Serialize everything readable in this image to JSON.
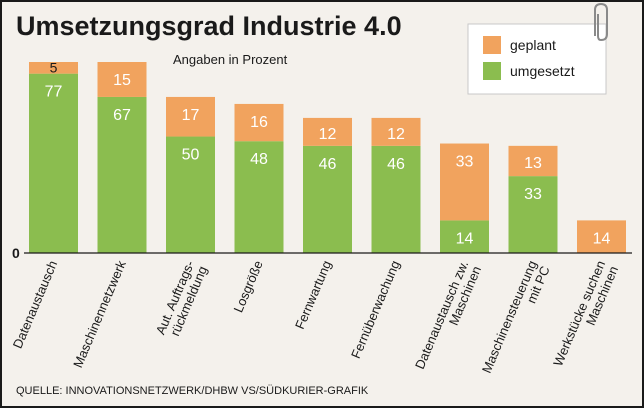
{
  "chart_data": {
    "type": "bar",
    "stacked": true,
    "title": "Umsetzungsgrad Industrie 4.0",
    "subtitle": "Angaben in Prozent",
    "zero_label": "0",
    "categories": [
      [
        "Datenaustausch"
      ],
      [
        "Maschinennetzwerk"
      ],
      [
        "Aut. Auftrags-",
        "rückmeldung"
      ],
      [
        "Losgröße"
      ],
      [
        "Fernwartung"
      ],
      [
        "Fernüberwachung"
      ],
      [
        "Datenaustausch zw.",
        "Maschinen"
      ],
      [
        "Maschinensteuerung",
        "mit PC"
      ],
      [
        "Werkstücke suchen",
        "Maschinen"
      ]
    ],
    "series": [
      {
        "name": "umgesetzt",
        "color": "#8bbd4f",
        "values": [
          77,
          67,
          50,
          48,
          46,
          46,
          14,
          33,
          0
        ]
      },
      {
        "name": "geplant",
        "color": "#f1a35e",
        "values": [
          5,
          15,
          17,
          16,
          12,
          12,
          33,
          13,
          14
        ]
      }
    ],
    "ylim": [
      0,
      82
    ],
    "legend": "top-right",
    "source": "QUELLE: INNOVATIONSNETZWERK/DHBW VS/SÜDKURIER-GRAFIK"
  },
  "icons": {
    "clip": "paperclip-icon"
  }
}
